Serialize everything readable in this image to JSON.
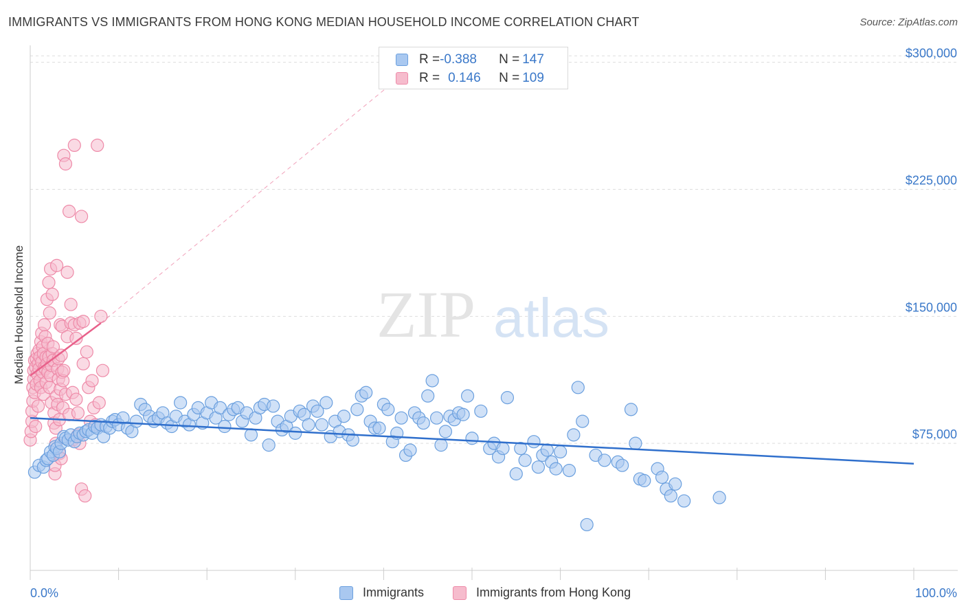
{
  "header": {
    "title": "IMMIGRANTS VS IMMIGRANTS FROM HONG KONG MEDIAN HOUSEHOLD INCOME CORRELATION CHART",
    "source": "Source: ZipAtlas.com"
  },
  "watermark": {
    "zip": "ZIP",
    "atlas": "atlas"
  },
  "legend_top": {
    "rows": [
      {
        "r_label": "R = ",
        "r_value": "-0.388",
        "n_label": "N = ",
        "n_value": "147"
      },
      {
        "r_label": "R = ",
        "r_value": "0.146",
        "n_label": "N = ",
        "n_value": "109"
      }
    ]
  },
  "legend_bottom": {
    "items": [
      "Immigrants",
      "Immigrants from Hong Kong"
    ]
  },
  "colors": {
    "blue_fill": "#a9c8f0",
    "blue_stroke": "#6a9fde",
    "blue_line": "#2f6fcc",
    "pink_fill": "#f6bccd",
    "pink_stroke": "#ee8aa8",
    "pink_line": "#e8608a",
    "axis_label": "#3a78c9",
    "grid": "#dddddd"
  },
  "chart_data": {
    "type": "scatter",
    "title": "IMMIGRANTS VS IMMIGRANTS FROM HONG KONG MEDIAN HOUSEHOLD INCOME CORRELATION CHART",
    "xlabel": "",
    "ylabel": "Median Household Income",
    "xlim": [
      0,
      100
    ],
    "ylim": [
      0,
      310000
    ],
    "x_tick_labels": [
      "0.0%",
      "100.0%"
    ],
    "y_ticks": [
      75000,
      150000,
      225000,
      300000
    ],
    "y_tick_labels": [
      "$75,000",
      "$150,000",
      "$225,000",
      "$300,000"
    ],
    "grid": true,
    "legend_position": "bottom",
    "series": [
      {
        "name": "Immigrants",
        "r": -0.388,
        "n": 147,
        "trend": {
          "x": [
            0,
            100
          ],
          "y": [
            90000,
            63000
          ],
          "style": "solid"
        },
        "points": [
          [
            0.5,
            58000
          ],
          [
            1.0,
            62000
          ],
          [
            1.5,
            61000
          ],
          [
            1.8,
            65000
          ],
          [
            2.0,
            66000
          ],
          [
            2.3,
            70000
          ],
          [
            2.6,
            68000
          ],
          [
            2.8,
            73000
          ],
          [
            3.0,
            72000
          ],
          [
            3.3,
            70000
          ],
          [
            3.5,
            75000
          ],
          [
            3.8,
            79000
          ],
          [
            4.0,
            78000
          ],
          [
            4.3,
            77000
          ],
          [
            4.6,
            80000
          ],
          [
            5.0,
            76000
          ],
          [
            5.3,
            79000
          ],
          [
            5.6,
            81000
          ],
          [
            6.0,
            80000
          ],
          [
            6.3,
            82000
          ],
          [
            6.6,
            83000
          ],
          [
            7.0,
            81000
          ],
          [
            7.3,
            85000
          ],
          [
            7.6,
            84000
          ],
          [
            8.0,
            86000
          ],
          [
            8.3,
            79000
          ],
          [
            8.6,
            85000
          ],
          [
            9.0,
            84000
          ],
          [
            9.3,
            88000
          ],
          [
            9.6,
            89000
          ],
          [
            10.0,
            86000
          ],
          [
            10.5,
            90000
          ],
          [
            11.0,
            84000
          ],
          [
            11.5,
            82000
          ],
          [
            12.0,
            88000
          ],
          [
            12.5,
            98000
          ],
          [
            13.0,
            95000
          ],
          [
            13.5,
            91000
          ],
          [
            14.0,
            88000
          ],
          [
            14.5,
            90000
          ],
          [
            15.0,
            93000
          ],
          [
            15.5,
            87000
          ],
          [
            16.0,
            85000
          ],
          [
            16.5,
            91000
          ],
          [
            17.0,
            99000
          ],
          [
            17.5,
            88000
          ],
          [
            18.0,
            86000
          ],
          [
            18.5,
            92000
          ],
          [
            19.0,
            96000
          ],
          [
            19.5,
            87000
          ],
          [
            20.0,
            93000
          ],
          [
            20.5,
            99000
          ],
          [
            21.0,
            90000
          ],
          [
            21.5,
            96000
          ],
          [
            22.0,
            85000
          ],
          [
            22.5,
            92000
          ],
          [
            23.0,
            95000
          ],
          [
            23.5,
            96000
          ],
          [
            24.0,
            88000
          ],
          [
            24.5,
            93000
          ],
          [
            25.0,
            80000
          ],
          [
            25.5,
            90000
          ],
          [
            26.0,
            96000
          ],
          [
            26.5,
            98000
          ],
          [
            27.0,
            74000
          ],
          [
            27.5,
            97000
          ],
          [
            28.0,
            88000
          ],
          [
            28.5,
            83000
          ],
          [
            29.0,
            85000
          ],
          [
            29.5,
            91000
          ],
          [
            30.0,
            81000
          ],
          [
            30.5,
            94000
          ],
          [
            31.0,
            92000
          ],
          [
            31.5,
            86000
          ],
          [
            32.0,
            97000
          ],
          [
            32.5,
            94000
          ],
          [
            33.0,
            86000
          ],
          [
            33.5,
            99000
          ],
          [
            34.0,
            79000
          ],
          [
            34.5,
            88000
          ],
          [
            35.0,
            82000
          ],
          [
            35.5,
            91000
          ],
          [
            36.0,
            80000
          ],
          [
            36.5,
            77000
          ],
          [
            37.0,
            95000
          ],
          [
            37.5,
            103000
          ],
          [
            38.0,
            105000
          ],
          [
            38.5,
            88000
          ],
          [
            39.0,
            84000
          ],
          [
            39.5,
            84000
          ],
          [
            40.0,
            98000
          ],
          [
            40.5,
            95000
          ],
          [
            41.0,
            76000
          ],
          [
            41.5,
            81000
          ],
          [
            42.0,
            90000
          ],
          [
            42.5,
            68000
          ],
          [
            43.0,
            71000
          ],
          [
            43.5,
            93000
          ],
          [
            44.0,
            90000
          ],
          [
            44.5,
            87000
          ],
          [
            45.0,
            103000
          ],
          [
            45.5,
            112000
          ],
          [
            46.0,
            90000
          ],
          [
            46.5,
            74000
          ],
          [
            47.0,
            82000
          ],
          [
            47.5,
            91000
          ],
          [
            48.0,
            89000
          ],
          [
            48.5,
            93000
          ],
          [
            49.0,
            92000
          ],
          [
            49.5,
            103000
          ],
          [
            50.0,
            78000
          ],
          [
            51.0,
            94000
          ],
          [
            52.0,
            72000
          ],
          [
            52.5,
            75000
          ],
          [
            53.0,
            67000
          ],
          [
            53.5,
            72000
          ],
          [
            54.0,
            102000
          ],
          [
            55.0,
            57000
          ],
          [
            55.5,
            72000
          ],
          [
            56.0,
            65000
          ],
          [
            57.0,
            76000
          ],
          [
            57.5,
            61000
          ],
          [
            58.0,
            68000
          ],
          [
            58.5,
            71000
          ],
          [
            59.0,
            64000
          ],
          [
            59.5,
            60000
          ],
          [
            60.0,
            70000
          ],
          [
            61.0,
            59000
          ],
          [
            61.5,
            80000
          ],
          [
            62.0,
            108000
          ],
          [
            62.5,
            88000
          ],
          [
            63.0,
            27000
          ],
          [
            64.0,
            68000
          ],
          [
            65.0,
            65000
          ],
          [
            66.5,
            64000
          ],
          [
            67.0,
            62000
          ],
          [
            68.0,
            95000
          ],
          [
            68.5,
            75000
          ],
          [
            69.0,
            54000
          ],
          [
            69.5,
            53000
          ],
          [
            71.0,
            60000
          ],
          [
            71.5,
            55000
          ],
          [
            72.0,
            48000
          ],
          [
            72.5,
            44000
          ],
          [
            73.0,
            51000
          ],
          [
            74.0,
            41000
          ],
          [
            78.0,
            43000
          ]
        ]
      },
      {
        "name": "Immigrants from Hong Kong",
        "r": 0.146,
        "n": 109,
        "trend": {
          "x": [
            0,
            8
          ],
          "y": [
            115000,
            146000
          ],
          "style": "solid",
          "extended": {
            "x": [
              8,
              45
            ],
            "y": [
              146000,
              305000
            ],
            "style": "dashed"
          }
        },
        "points": [
          [
            0.0,
            77000
          ],
          [
            0.1,
            82000
          ],
          [
            0.2,
            88000
          ],
          [
            0.2,
            94000
          ],
          [
            0.3,
            100000
          ],
          [
            0.3,
            108000
          ],
          [
            0.4,
            113000
          ],
          [
            0.4,
            118000
          ],
          [
            0.5,
            124000
          ],
          [
            0.5,
            105000
          ],
          [
            0.6,
            85000
          ],
          [
            0.6,
            120000
          ],
          [
            0.7,
            125000
          ],
          [
            0.7,
            110000
          ],
          [
            0.8,
            128000
          ],
          [
            0.8,
            116000
          ],
          [
            0.9,
            122000
          ],
          [
            0.9,
            97000
          ],
          [
            1.0,
            119000
          ],
          [
            1.0,
            130000
          ],
          [
            1.1,
            126000
          ],
          [
            1.1,
            112000
          ],
          [
            1.2,
            135000
          ],
          [
            1.2,
            108000
          ],
          [
            1.3,
            140000
          ],
          [
            1.3,
            123000
          ],
          [
            1.4,
            117000
          ],
          [
            1.4,
            132000
          ],
          [
            1.5,
            128000
          ],
          [
            1.5,
            104000
          ],
          [
            1.6,
            145000
          ],
          [
            1.6,
            120000
          ],
          [
            1.7,
            119000
          ],
          [
            1.7,
            138000
          ],
          [
            1.8,
            126000
          ],
          [
            1.8,
            111000
          ],
          [
            1.9,
            160000
          ],
          [
            1.9,
            122000
          ],
          [
            2.0,
            117000
          ],
          [
            2.0,
            134000
          ],
          [
            2.1,
            170000
          ],
          [
            2.1,
            126000
          ],
          [
            2.2,
            152000
          ],
          [
            2.2,
            108000
          ],
          [
            2.3,
            178000
          ],
          [
            2.3,
            115000
          ],
          [
            2.4,
            121000
          ],
          [
            2.4,
            99000
          ],
          [
            2.5,
            163000
          ],
          [
            2.5,
            128000
          ],
          [
            2.6,
            132000
          ],
          [
            2.6,
            124000
          ],
          [
            2.7,
            93000
          ],
          [
            2.7,
            87000
          ],
          [
            2.8,
            57000
          ],
          [
            2.8,
            62000
          ],
          [
            2.9,
            75000
          ],
          [
            2.9,
            84000
          ],
          [
            3.0,
            180000
          ],
          [
            3.0,
            103000
          ],
          [
            3.1,
            119000
          ],
          [
            3.1,
            98000
          ],
          [
            3.2,
            113000
          ],
          [
            3.2,
            125000
          ],
          [
            3.3,
            89000
          ],
          [
            3.3,
            69000
          ],
          [
            3.4,
            107000
          ],
          [
            3.4,
            145000
          ],
          [
            3.5,
            127000
          ],
          [
            3.5,
            66000
          ],
          [
            3.6,
            144000
          ],
          [
            3.6,
            117000
          ],
          [
            3.7,
            96000
          ],
          [
            3.7,
            112000
          ],
          [
            3.8,
            118000
          ],
          [
            3.8,
            245000
          ],
          [
            4.0,
            240000
          ],
          [
            4.0,
            104000
          ],
          [
            4.2,
            176000
          ],
          [
            4.2,
            138000
          ],
          [
            4.4,
            212000
          ],
          [
            4.4,
            92000
          ],
          [
            4.6,
            157000
          ],
          [
            4.6,
            146000
          ],
          [
            4.8,
            105000
          ],
          [
            4.8,
            77000
          ],
          [
            5.0,
            251000
          ],
          [
            5.0,
            145000
          ],
          [
            5.2,
            137000
          ],
          [
            5.2,
            101000
          ],
          [
            5.4,
            93000
          ],
          [
            5.4,
            80000
          ],
          [
            5.6,
            146000
          ],
          [
            5.6,
            75000
          ],
          [
            5.8,
            48000
          ],
          [
            5.8,
            209000
          ],
          [
            6.0,
            122000
          ],
          [
            6.0,
            147000
          ],
          [
            6.2,
            44000
          ],
          [
            6.4,
            129000
          ],
          [
            6.6,
            108000
          ],
          [
            6.8,
            88000
          ],
          [
            7.0,
            112000
          ],
          [
            7.2,
            96000
          ],
          [
            7.4,
            86000
          ],
          [
            7.6,
            251000
          ],
          [
            7.8,
            99000
          ],
          [
            8.0,
            150000
          ],
          [
            8.2,
            118000
          ]
        ]
      }
    ]
  }
}
